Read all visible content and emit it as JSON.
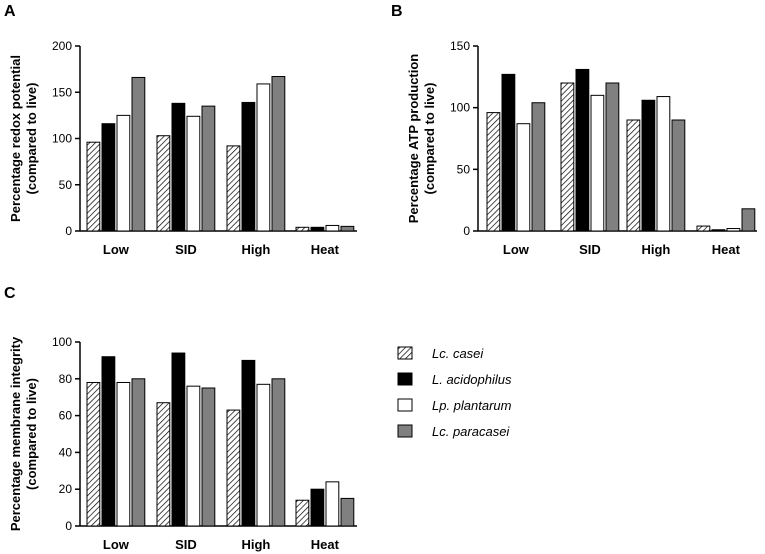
{
  "categories": [
    "Low",
    "SID",
    "High",
    "Heat"
  ],
  "series_styles": [
    {
      "name": "Lc. casei",
      "fill": "hatch",
      "color": "#ffffff"
    },
    {
      "name": "L. acidophilus",
      "fill": "solid",
      "color": "#000000"
    },
    {
      "name": "Lp. plantarum",
      "fill": "solid",
      "color": "#ffffff"
    },
    {
      "name": "Lc. paracasei",
      "fill": "solid",
      "color": "#808080"
    }
  ],
  "legend": {
    "items": [
      "Lc. casei",
      "L. acidophilus",
      "Lp. plantarum",
      "Lc. paracasei"
    ]
  },
  "chart_data": [
    {
      "panel": "A",
      "type": "bar",
      "categories": [
        "Low",
        "SID",
        "High",
        "Heat"
      ],
      "ylabel_line1": "Percentage redox potential",
      "ylabel_line2": "(compared to live)",
      "ylim": [
        0,
        200
      ],
      "yticks": [
        0,
        50,
        100,
        150,
        200
      ],
      "series": [
        {
          "name": "Lc. casei",
          "values": [
            96,
            103,
            92,
            4
          ]
        },
        {
          "name": "L. acidophilus",
          "values": [
            116,
            138,
            139,
            4
          ]
        },
        {
          "name": "Lp. plantarum",
          "values": [
            125,
            124,
            159,
            6
          ]
        },
        {
          "name": "Lc. paracasei",
          "values": [
            166,
            135,
            167,
            5
          ]
        }
      ]
    },
    {
      "panel": "B",
      "type": "bar",
      "categories": [
        "Low",
        "SID",
        "High",
        "Heat"
      ],
      "ylabel_line1": "Percentage ATP production",
      "ylabel_line2": "(compared to live)",
      "ylim": [
        0,
        150
      ],
      "yticks": [
        0,
        50,
        100,
        150
      ],
      "series": [
        {
          "name": "Lc. casei",
          "values": [
            96,
            120,
            90,
            4
          ]
        },
        {
          "name": "L. acidophilus",
          "values": [
            127,
            131,
            106,
            1
          ]
        },
        {
          "name": "Lp. plantarum",
          "values": [
            87,
            110,
            109,
            2
          ]
        },
        {
          "name": "Lc. paracasei",
          "values": [
            104,
            120,
            90,
            18
          ]
        }
      ]
    },
    {
      "panel": "C",
      "type": "bar",
      "categories": [
        "Low",
        "SID",
        "High",
        "Heat"
      ],
      "ylabel_line1": "Percentage membrane integrity",
      "ylabel_line2": "(compared to live)",
      "ylim": [
        0,
        100
      ],
      "yticks": [
        0,
        20,
        40,
        60,
        80,
        100
      ],
      "series": [
        {
          "name": "Lc. casei",
          "values": [
            78,
            67,
            63,
            14
          ]
        },
        {
          "name": "L. acidophilus",
          "values": [
            92,
            94,
            90,
            20
          ]
        },
        {
          "name": "Lp. plantarum",
          "values": [
            78,
            76,
            77,
            24
          ]
        },
        {
          "name": "Lc. paracasei",
          "values": [
            80,
            75,
            80,
            15
          ]
        }
      ]
    }
  ]
}
